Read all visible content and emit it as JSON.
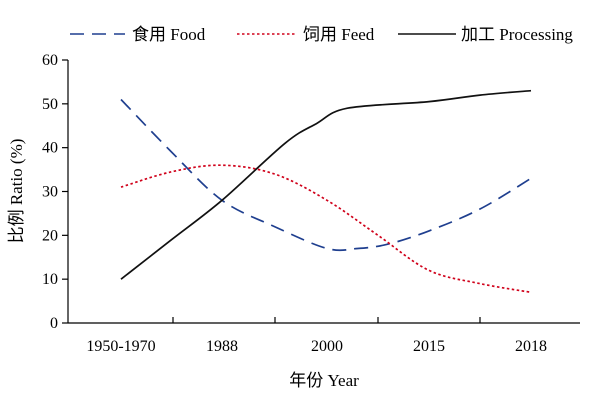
{
  "chart_data": {
    "type": "line",
    "title": "",
    "xlabel": "年份 Year",
    "ylabel": "比例 Ratio (%)",
    "ylim": [
      0,
      60
    ],
    "yticks": [
      0,
      10,
      20,
      30,
      40,
      50,
      60
    ],
    "x_tick_labels": [
      "1950-1970",
      "1988",
      "2000",
      "2015",
      "2018"
    ],
    "grid": false,
    "legend_position": "top",
    "series": [
      {
        "name": "食用 Food",
        "style": "dashed",
        "color": "#1f3f8f",
        "points": [
          {
            "x": 0.0,
            "y": 51
          },
          {
            "x": 0.5,
            "y": 39
          },
          {
            "x": 1.0,
            "y": 28
          },
          {
            "x": 1.5,
            "y": 22
          },
          {
            "x": 2.0,
            "y": 17
          },
          {
            "x": 2.3,
            "y": 17
          },
          {
            "x": 2.6,
            "y": 18
          },
          {
            "x": 3.0,
            "y": 21
          },
          {
            "x": 3.5,
            "y": 26
          },
          {
            "x": 4.0,
            "y": 33
          }
        ]
      },
      {
        "name": "饲用 Feed",
        "style": "dotted",
        "color": "#d0021b",
        "points": [
          {
            "x": 0.0,
            "y": 31
          },
          {
            "x": 0.5,
            "y": 34.5
          },
          {
            "x": 1.0,
            "y": 36
          },
          {
            "x": 1.5,
            "y": 34
          },
          {
            "x": 2.0,
            "y": 28
          },
          {
            "x": 2.5,
            "y": 20
          },
          {
            "x": 3.0,
            "y": 12
          },
          {
            "x": 3.5,
            "y": 9
          },
          {
            "x": 4.0,
            "y": 7
          }
        ]
      },
      {
        "name": "加工 Processing",
        "style": "solid",
        "color": "#111111",
        "points": [
          {
            "x": 0.0,
            "y": 10
          },
          {
            "x": 0.5,
            "y": 19
          },
          {
            "x": 1.0,
            "y": 28
          },
          {
            "x": 1.6,
            "y": 41
          },
          {
            "x": 1.9,
            "y": 45.5
          },
          {
            "x": 2.2,
            "y": 49
          },
          {
            "x": 3.0,
            "y": 50.5
          },
          {
            "x": 3.5,
            "y": 52
          },
          {
            "x": 4.0,
            "y": 53
          }
        ]
      }
    ]
  }
}
